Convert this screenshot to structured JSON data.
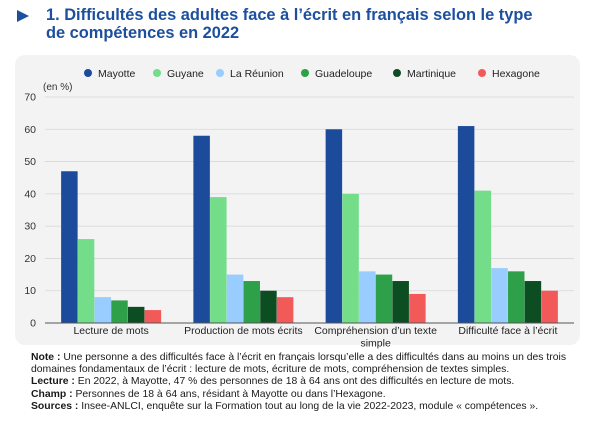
{
  "header": {
    "title_line1": "1. Difficultés des adultes face à l’écrit en français selon le type",
    "title_line2": "de compétences en 2022"
  },
  "colors": {
    "title": "#1c4f9e",
    "panel_bg": "#f3f3f3",
    "series": [
      "#1c4b9c",
      "#74dd8a",
      "#99ccff",
      "#2ea04a",
      "#0d4d22",
      "#f25a5a"
    ]
  },
  "notes": [
    {
      "label": "Note :",
      "text": " Une personne a des difficultés face à l’écrit en français lorsqu’elle a des difficultés dans au moins un des trois domaines fondamentaux de l’écrit : lecture de mots, écriture de mots, compréhension de textes simples."
    },
    {
      "label": "Lecture :",
      "text": " En 2022, à Mayotte, 47 % des personnes de 18 à 64 ans ont des difficultés en lecture de mots."
    },
    {
      "label": "Champ :",
      "text": " Personnes de 18 à 64 ans, résidant à Mayotte ou dans l’Hexagone."
    },
    {
      "label": "Sources :",
      "text": " Insee-ANLCI, enquête sur la Formation tout au long de la vie 2022-2023, module « compétences »."
    }
  ],
  "chart_data": {
    "type": "bar",
    "unit_label": "(en %)",
    "ylim": [
      0,
      70
    ],
    "yticks": [
      0,
      10,
      20,
      30,
      40,
      50,
      60,
      70
    ],
    "grid": true,
    "legend_position": "top",
    "categories": [
      [
        "Lecture de mots"
      ],
      [
        "Production de mots écrits"
      ],
      [
        "Compréhension d’un texte",
        "simple"
      ],
      [
        "Difficulté face à l’écrit"
      ]
    ],
    "series": [
      {
        "name": "Mayotte",
        "values": [
          47,
          58,
          60,
          61
        ]
      },
      {
        "name": "Guyane",
        "values": [
          26,
          39,
          40,
          41
        ]
      },
      {
        "name": "La Réunion",
        "values": [
          8,
          15,
          16,
          17
        ]
      },
      {
        "name": "Guadeloupe",
        "values": [
          7,
          13,
          15,
          16
        ]
      },
      {
        "name": "Martinique",
        "values": [
          5,
          10,
          13,
          13
        ]
      },
      {
        "name": "Hexagone",
        "values": [
          4,
          8,
          9,
          10
        ]
      }
    ]
  }
}
